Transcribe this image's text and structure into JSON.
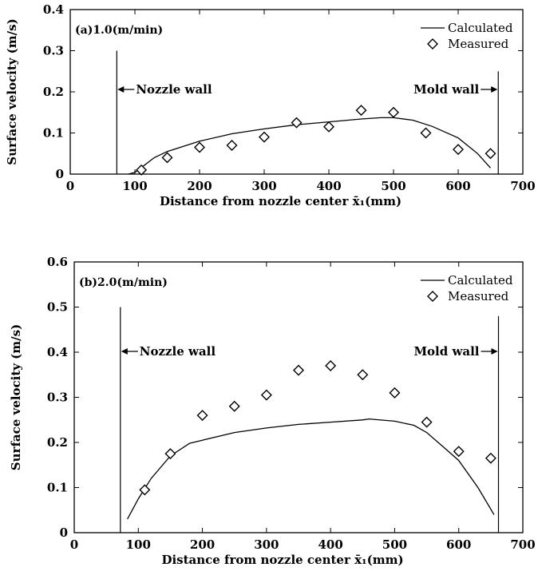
{
  "chart_data": [
    {
      "type": "scatter",
      "panel_label": "(a)1.0(m/min)",
      "xlabel": "Distance from nozzle center x̄₁(mm)",
      "ylabel": "Surface velocity (m/s)",
      "xlim": [
        0,
        700
      ],
      "ylim": [
        0,
        0.4
      ],
      "xticks": [
        0,
        100,
        200,
        300,
        400,
        500,
        600,
        700
      ],
      "yticks": [
        0,
        0.1,
        0.2,
        0.3,
        0.4
      ],
      "xtick_labels": [
        "0",
        "100",
        "200",
        "300",
        "400",
        "500",
        "600",
        "700"
      ],
      "ytick_labels": [
        "0",
        "0.1",
        "0.2",
        "0.3",
        "0.4"
      ],
      "grid": false,
      "legend": {
        "position": "top-right",
        "entries": [
          "Calculated",
          "Measured"
        ]
      },
      "series": [
        {
          "name": "Calculated",
          "style": "line",
          "x": [
            90,
            100,
            110,
            130,
            150,
            200,
            250,
            300,
            350,
            400,
            450,
            480,
            500,
            530,
            560,
            600,
            630,
            650
          ],
          "y": [
            0.0,
            0.004,
            0.016,
            0.04,
            0.055,
            0.08,
            0.098,
            0.11,
            0.12,
            0.127,
            0.134,
            0.137,
            0.137,
            0.131,
            0.116,
            0.088,
            0.05,
            0.015
          ]
        },
        {
          "name": "Measured",
          "style": "marker",
          "x": [
            110,
            150,
            200,
            250,
            300,
            350,
            400,
            450,
            500,
            550,
            600,
            650
          ],
          "y": [
            0.01,
            0.04,
            0.065,
            0.07,
            0.09,
            0.125,
            0.115,
            0.155,
            0.15,
            0.1,
            0.06,
            0.05
          ]
        }
      ],
      "annotations": [
        {
          "text": "Nozzle wall",
          "wall_x": 72,
          "wall_top": 0.3
        },
        {
          "text": "Mold wall",
          "wall_x": 662,
          "wall_top": 0.25
        }
      ]
    },
    {
      "type": "scatter",
      "panel_label": "(b)2.0(m/min)",
      "xlabel": "Distance from nozzle center x̄₁(mm)",
      "ylabel": "Surface velocity (m/s)",
      "xlim": [
        0,
        700
      ],
      "ylim": [
        0,
        0.6
      ],
      "xticks": [
        0,
        100,
        200,
        300,
        400,
        500,
        600,
        700
      ],
      "yticks": [
        0,
        0.1,
        0.2,
        0.3,
        0.4,
        0.5,
        0.6
      ],
      "xtick_labels": [
        "0",
        "100",
        "200",
        "300",
        "400",
        "500",
        "600",
        "700"
      ],
      "ytick_labels": [
        "0",
        "0.1",
        "0.2",
        "0.3",
        "0.4",
        "0.5",
        "0.6"
      ],
      "grid": false,
      "legend": {
        "position": "top-right",
        "entries": [
          "Calculated",
          "Measured"
        ]
      },
      "series": [
        {
          "name": "Calculated",
          "style": "line",
          "x": [
            83,
            100,
            120,
            150,
            180,
            200,
            250,
            300,
            350,
            400,
            450,
            460,
            500,
            530,
            550,
            580,
            600,
            630,
            655
          ],
          "y": [
            0.03,
            0.075,
            0.12,
            0.17,
            0.198,
            0.205,
            0.222,
            0.232,
            0.24,
            0.245,
            0.25,
            0.252,
            0.247,
            0.238,
            0.222,
            0.185,
            0.16,
            0.1,
            0.04
          ]
        },
        {
          "name": "Measured",
          "style": "marker",
          "x": [
            110,
            150,
            200,
            250,
            300,
            350,
            400,
            450,
            500,
            550,
            600,
            650
          ],
          "y": [
            0.095,
            0.175,
            0.26,
            0.28,
            0.305,
            0.36,
            0.37,
            0.35,
            0.31,
            0.245,
            0.18,
            0.165
          ]
        }
      ],
      "annotations": [
        {
          "text": "Nozzle wall",
          "wall_x": 72,
          "wall_top": 0.5
        },
        {
          "text": "Mold wall",
          "wall_x": 662,
          "wall_top": 0.48
        }
      ]
    }
  ]
}
